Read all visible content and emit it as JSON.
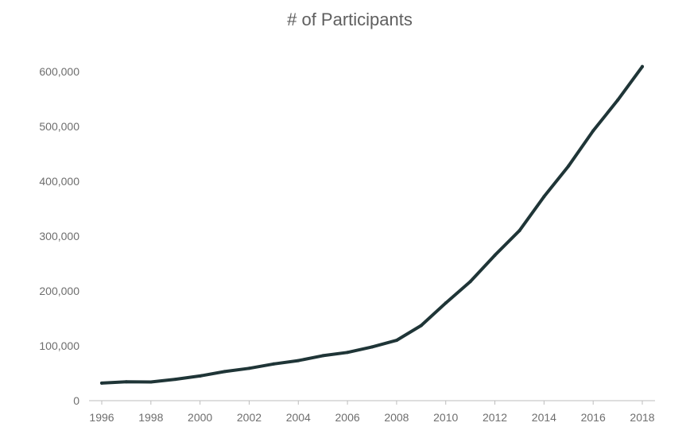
{
  "chart_data": {
    "type": "line",
    "title": "# of Participants",
    "xlabel": "",
    "ylabel": "",
    "x": [
      1996,
      1997,
      1998,
      1999,
      2000,
      2001,
      2002,
      2003,
      2004,
      2005,
      2006,
      2007,
      2008,
      2009,
      2010,
      2011,
      2012,
      2013,
      2014,
      2015,
      2016,
      2017,
      2018
    ],
    "series": [
      {
        "values": [
          32000,
          34500,
          34000,
          39000,
          45000,
          53000,
          59000,
          67000,
          73000,
          82000,
          88000,
          98000,
          110000,
          137000,
          178000,
          217000,
          265000,
          310000,
          372000,
          428000,
          492000,
          548000,
          609000
        ]
      }
    ],
    "xticks": [
      "1996",
      "1998",
      "2000",
      "2002",
      "2004",
      "2006",
      "2008",
      "2010",
      "2012",
      "2014",
      "2016",
      "2018"
    ],
    "yticks": [
      "0",
      "100,000",
      "200,000",
      "300,000",
      "400,000",
      "500,000",
      "600,000"
    ],
    "ylim": [
      0,
      600000
    ],
    "xlim": [
      1996,
      2018
    ],
    "grid": false,
    "legend": "none",
    "colors": {
      "line": "#1f3537",
      "axis": "#bdbdbd",
      "text": "#6e6e6e",
      "title": "#5f5f5f"
    }
  }
}
